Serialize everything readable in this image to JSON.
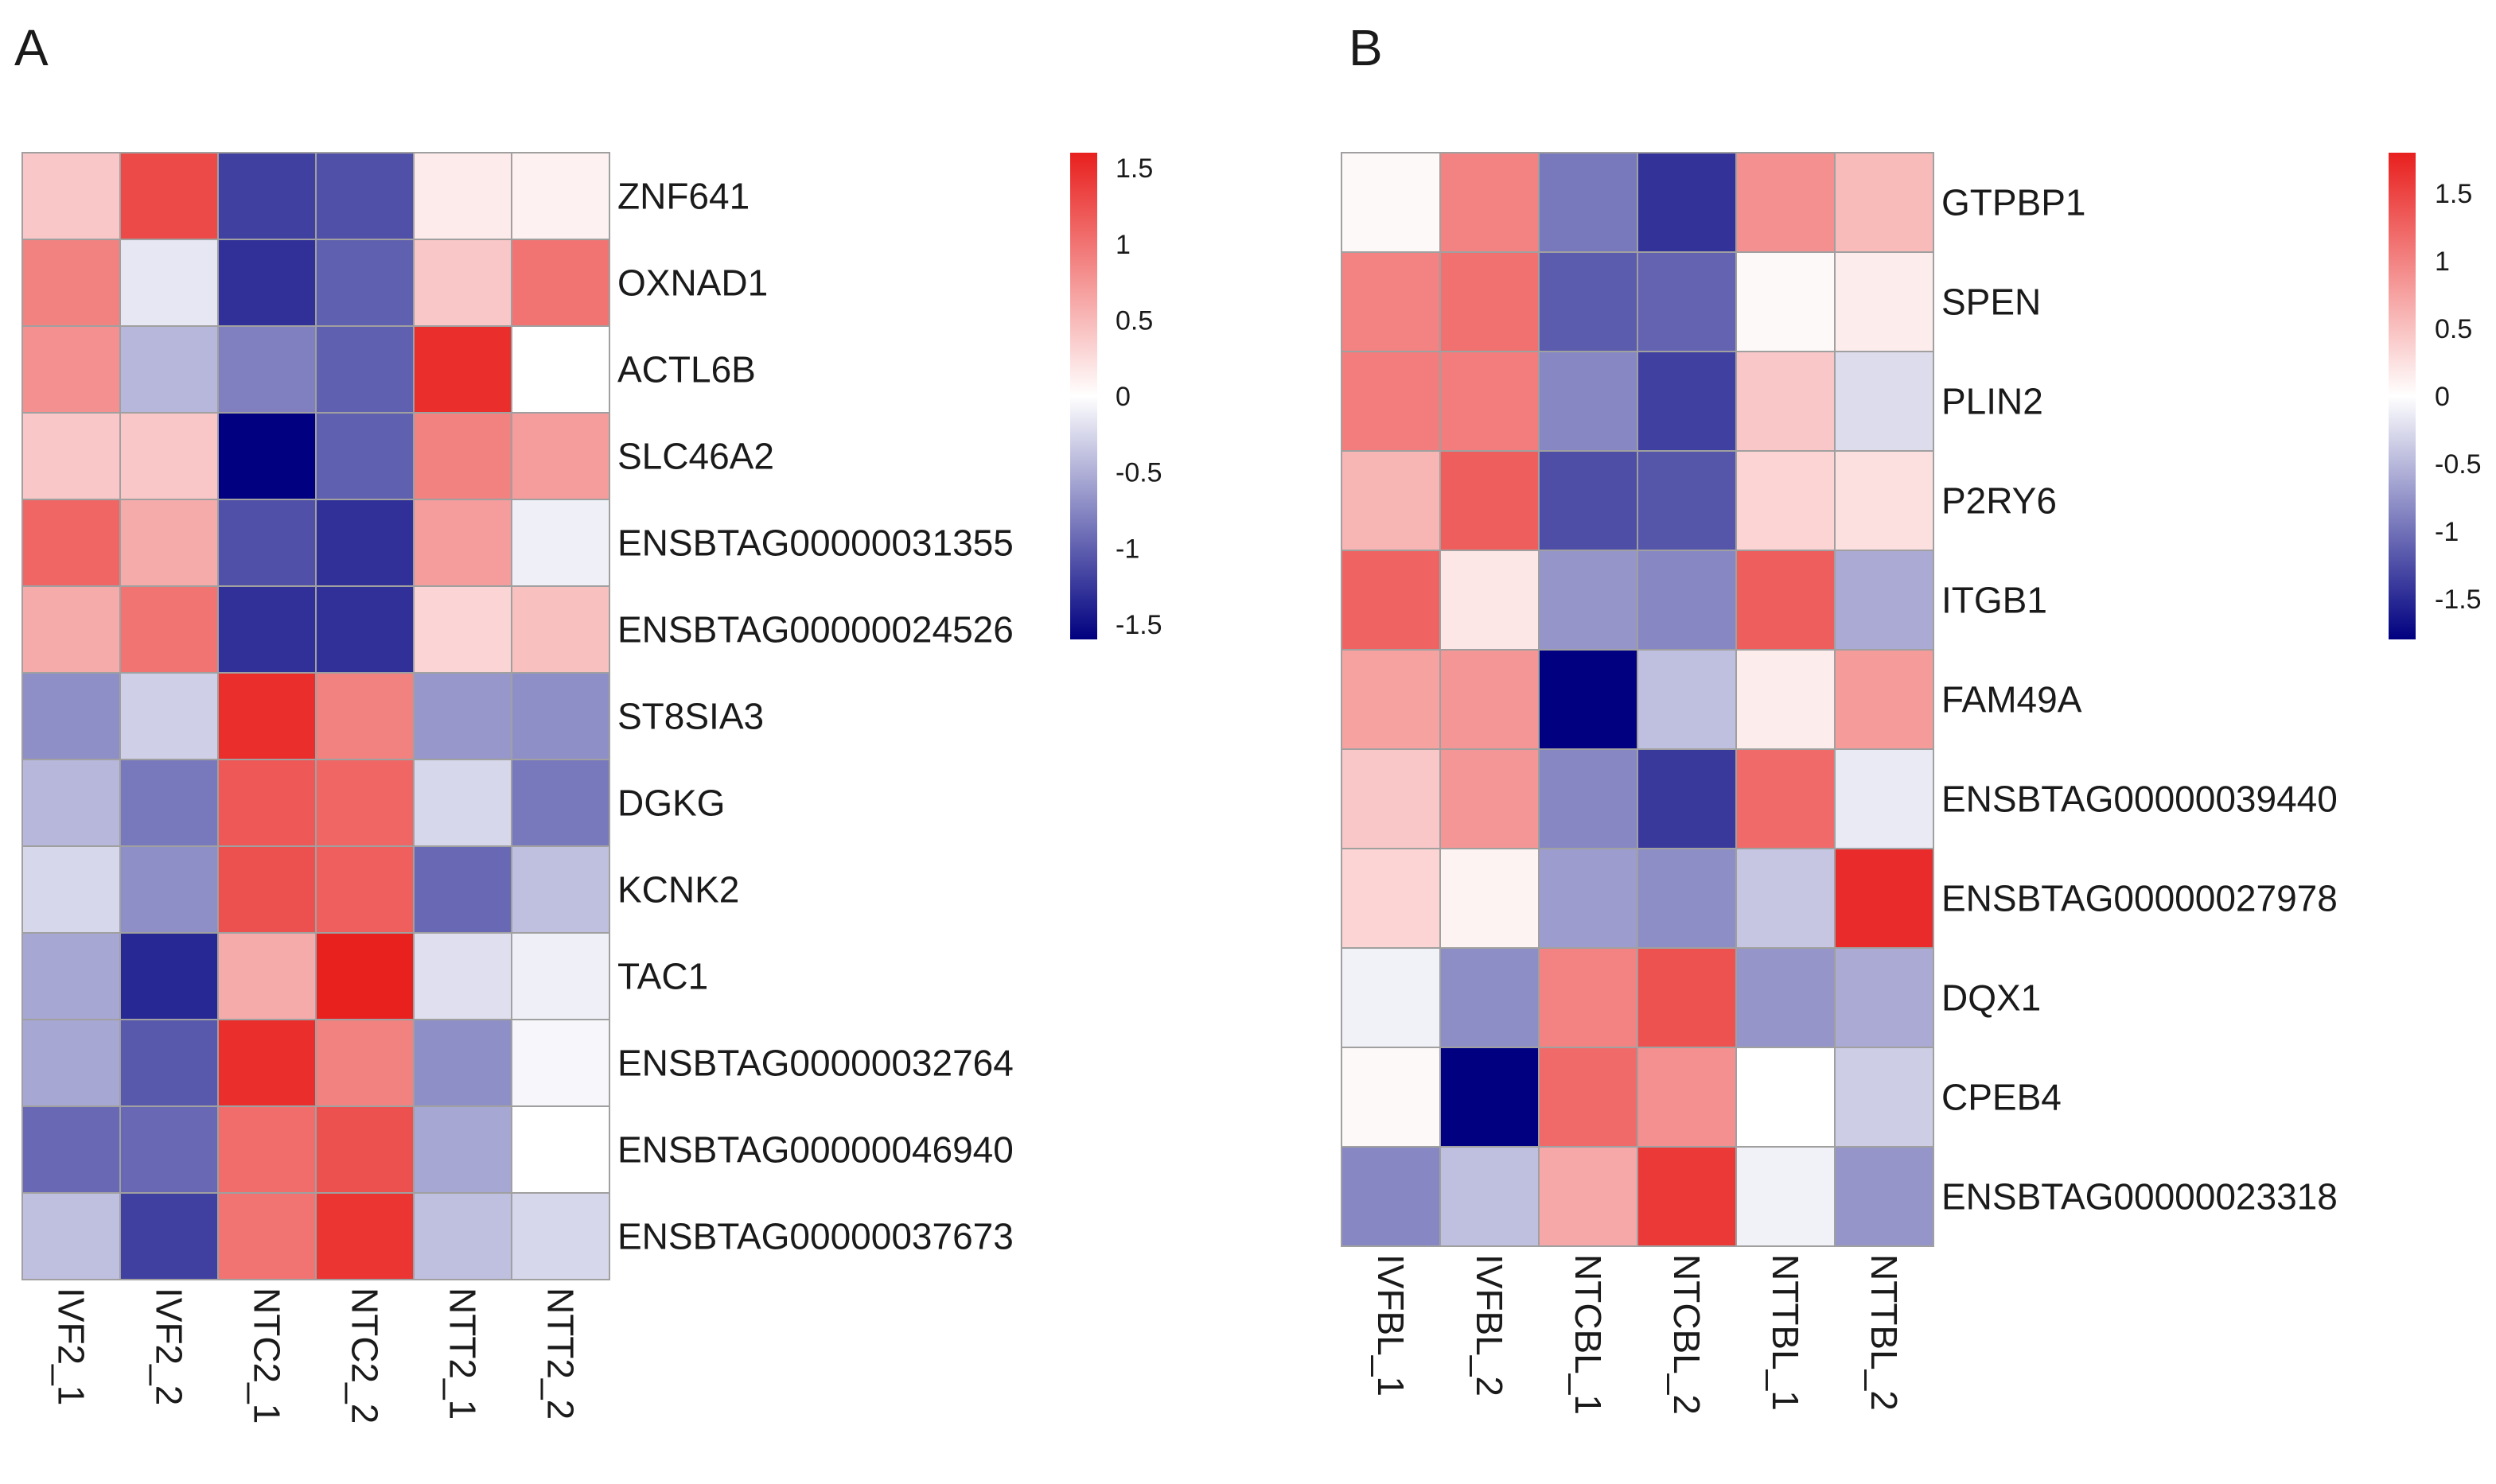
{
  "chart_data": [
    {
      "type": "heatmap",
      "panel": "A",
      "columns": [
        "IVF2_1",
        "IVF2_2",
        "NTC2_1",
        "NTC2_2",
        "NTT2_1",
        "NTT2_2"
      ],
      "rows": [
        "ZNF641",
        "OXNAD1",
        "ACTL6B",
        "SLC46A2",
        "ENSBTAG00000031355",
        "ENSBTAG00000024526",
        "ST8SIA3",
        "DGKG",
        "KCNK2",
        "TAC1",
        "ENSBTAG00000032764",
        "ENSBTAG00000046940",
        "ENSBTAG00000037673"
      ],
      "values": [
        [
          0.4,
          1.3,
          -1.2,
          -1.1,
          0.15,
          0.1
        ],
        [
          0.9,
          -0.15,
          -1.3,
          -1.0,
          0.4,
          1.0
        ],
        [
          0.8,
          -0.45,
          -0.8,
          -1.0,
          1.5,
          0.0
        ],
        [
          0.4,
          0.4,
          -1.6,
          -1.0,
          0.9,
          0.7
        ],
        [
          1.1,
          0.6,
          -1.1,
          -1.3,
          0.7,
          -0.1
        ],
        [
          0.6,
          1.0,
          -1.3,
          -1.3,
          0.3,
          0.45
        ],
        [
          -0.7,
          -0.3,
          1.5,
          0.9,
          -0.65,
          -0.7
        ],
        [
          -0.45,
          -0.85,
          1.2,
          1.1,
          -0.25,
          -0.85
        ],
        [
          -0.25,
          -0.7,
          1.25,
          1.15,
          -0.95,
          -0.4
        ],
        [
          -0.55,
          -1.35,
          0.6,
          1.6,
          -0.2,
          -0.1
        ],
        [
          -0.55,
          -1.05,
          1.5,
          0.9,
          -0.7,
          -0.05
        ],
        [
          -0.95,
          -0.95,
          1.05,
          1.25,
          -0.55,
          0.0
        ],
        [
          -0.4,
          -1.2,
          1.0,
          1.45,
          -0.4,
          -0.25
        ]
      ],
      "legend": {
        "ticks": [
          1.5,
          1,
          0.5,
          0,
          -0.5,
          -1,
          -1.5
        ],
        "tick_labels": [
          "1.5",
          "1",
          "0.5",
          "0",
          "-0.5",
          "-1",
          "-1.5"
        ],
        "range": [
          -1.6,
          1.6
        ]
      }
    },
    {
      "type": "heatmap",
      "panel": "B",
      "columns": [
        "IVFBL_1",
        "IVFBL_2",
        "NTCBL_1",
        "NTCBL_2",
        "NTTBL_1",
        "NTTBL_2"
      ],
      "rows": [
        "GTPBP1",
        "SPEN",
        "PLIN2",
        "P2RY6",
        "ITGB1",
        "FAM49A",
        "ENSBTAG00000039440",
        "ENSBTAG00000027978",
        "DQX1",
        "CPEB4",
        "ENSBTAG00000023318"
      ],
      "values": [
        [
          0.05,
          1.0,
          -0.95,
          -1.45,
          0.9,
          0.55
        ],
        [
          1.0,
          1.15,
          -1.15,
          -1.1,
          0.05,
          0.15
        ],
        [
          1.05,
          1.05,
          -0.85,
          -1.35,
          0.45,
          -0.25
        ],
        [
          0.6,
          1.3,
          -1.25,
          -1.2,
          0.35,
          0.25
        ],
        [
          1.25,
          0.2,
          -0.75,
          -0.85,
          1.3,
          -0.6
        ],
        [
          0.75,
          0.85,
          -1.8,
          -0.45,
          0.15,
          0.8
        ],
        [
          0.45,
          0.85,
          -0.85,
          -1.4,
          1.2,
          -0.15
        ],
        [
          0.35,
          0.1,
          -0.7,
          -0.8,
          -0.4,
          1.7
        ],
        [
          -0.1,
          -0.8,
          1.0,
          1.4,
          -0.75,
          -0.6
        ],
        [
          0.05,
          -1.8,
          1.2,
          0.9,
          0.0,
          -0.35
        ],
        [
          -0.85,
          -0.45,
          0.7,
          1.6,
          -0.1,
          -0.75
        ]
      ],
      "legend": {
        "ticks": [
          1.5,
          1,
          0.5,
          0,
          -0.5,
          -1,
          -1.5
        ],
        "tick_labels": [
          "1.5",
          "1",
          "0.5",
          "0",
          "-0.5",
          "-1",
          "-1.5"
        ],
        "range": [
          -1.8,
          1.8
        ]
      }
    }
  ],
  "colors": {
    "low": "#000080",
    "mid": "#ffffff",
    "high": "#e8201e",
    "border": "#a0a0a0"
  }
}
